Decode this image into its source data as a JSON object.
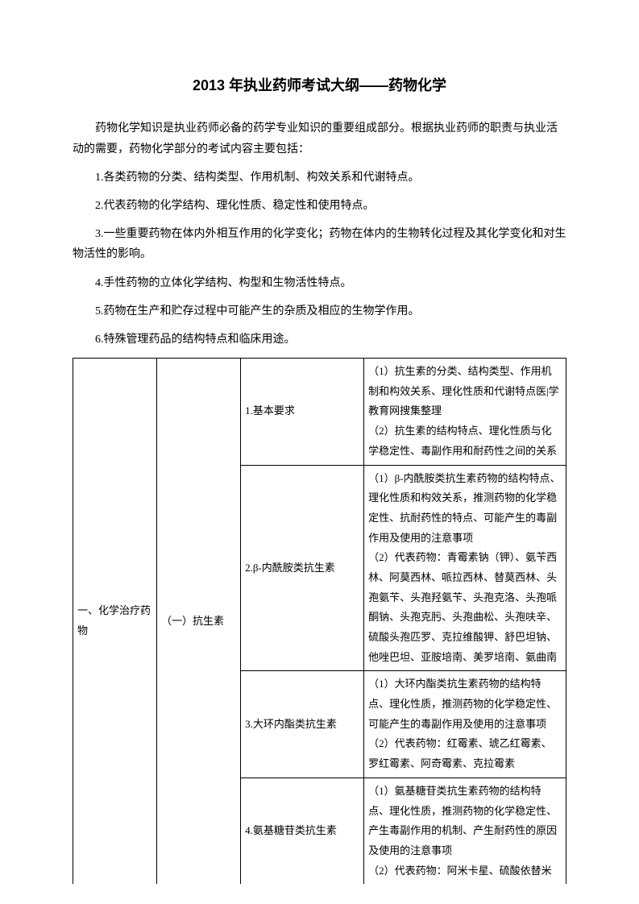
{
  "title": "2013 年执业药师考试大纲——药物化学",
  "intro": "药物化学知识是执业药师必备的药学专业知识的重要组成部分。根据执业药师的职责与执业活动的需要，药物化学部分的考试内容主要包括：",
  "points": [
    "1.各类药物的分类、结构类型、作用机制、构效关系和代谢特点。",
    "2.代表药物的化学结构、理化性质、稳定性和使用特点。",
    "3.一些重要药物在体内外相互作用的化学变化；药物在体内的生物转化过程及其化学变化和对生物活性的影响。",
    "4.手性药物的立体化学结构、构型和生物活性特点。",
    "5.药物在生产和贮存过程中可能产生的杂质及相应的生物学作用。",
    "6.特殊管理药品的结构特点和临床用途。"
  ],
  "table": {
    "col1": "一、化学治疗药物",
    "col2": "（一）抗生素",
    "rows": [
      {
        "c3": "1.基本要求",
        "c4": "（1）抗生素的分类、结构类型、作用机制和构效关系、理化性质和代谢特点医|学教育网搜集整理\n（2）抗生素的结构特点、理化性质与化学稳定性、毒副作用和耐药性之间的关系"
      },
      {
        "c3": "2.β-内酰胺类抗生素",
        "c4": "（1）β-内酰胺类抗生素药物的结构特点、理化性质和构效关系，推测药物的化学稳定性、抗耐药性的特点、可能产生的毒副作用及使用的注意事项\n（2）代表药物：青霉素钠（钾）、氨苄西林、阿莫西林、哌拉西林、替莫西林、头孢氨苄、头孢羟氨苄、头孢克洛、头孢哌酮钠、头孢克肟、头孢曲松、头孢呋辛、硫酸头孢匹罗、克拉维酸钾、舒巴坦钠、他唑巴坦、亚胺培南、美罗培南、氨曲南"
      },
      {
        "c3": "3.大环内酯类抗生素",
        "c4": "（1）大环内酯类抗生素药物的结构特点、理化性质，推测药物的化学稳定性、可能产生的毒副作用及使用的注意事项\n（2）代表药物：红霉素、琥乙红霉素、罗红霉素、阿奇霉素、克拉霉素"
      },
      {
        "c3": "4.氨基糖苷类抗生素",
        "c4": "（1）氨基糖苷类抗生素药物的结构特点、理化性质，推测药物的化学稳定性、产生毒副作用的机制、产生耐药性的原因及使用的注意事项\n（2）代表药物：阿米卡星、硫酸依替米"
      }
    ]
  }
}
